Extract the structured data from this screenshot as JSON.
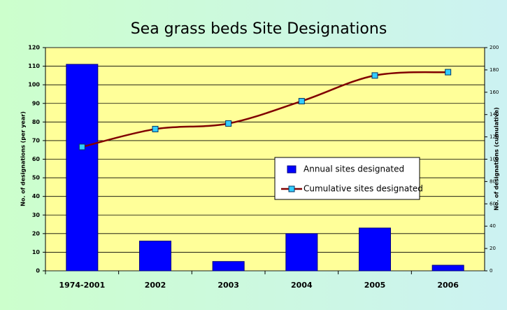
{
  "chart_data": {
    "type": "bar",
    "title": "Sea grass beds Site Designations",
    "categories": [
      "1974-2001",
      "2002",
      "2003",
      "2004",
      "2005",
      "2006"
    ],
    "series": [
      {
        "name": "Annual sites designated",
        "type": "bar",
        "color": "#0000ff",
        "values": [
          111,
          16,
          5,
          20,
          23,
          3
        ]
      },
      {
        "name": "Cumulative sites designated",
        "type": "line",
        "axis": "y2",
        "color": "#800000",
        "marker_color": "#33ccff",
        "values": [
          111,
          127,
          132,
          152,
          175,
          178
        ]
      }
    ],
    "ylabel": "No. of designations (per year)",
    "y2label": "No. of designations (cumulative)",
    "ylim": [
      0,
      120
    ],
    "yticks": [
      0,
      10,
      20,
      30,
      40,
      50,
      60,
      70,
      80,
      90,
      100,
      110,
      120
    ],
    "y2lim": [
      0,
      200
    ],
    "y2ticks": [
      0,
      20,
      40,
      60,
      80,
      100,
      120,
      140,
      160,
      180,
      200
    ],
    "grid": true
  }
}
